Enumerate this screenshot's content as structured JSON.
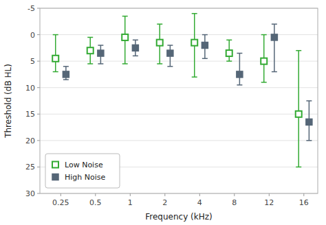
{
  "chart_data": {
    "type": "errorbar",
    "xlabel": "Frequency (kHz)",
    "ylabel": "Threshold (dB HL)",
    "categories": [
      "0.25",
      "0.5",
      "1",
      "2",
      "4",
      "8",
      "12",
      "16"
    ],
    "series": [
      {
        "name": "Low Noise",
        "color": "#33aa33",
        "marker": "open-square",
        "values": [
          4.5,
          3.0,
          0.5,
          1.5,
          1.5,
          3.5,
          5.0,
          15.0
        ],
        "err_lo": [
          4.5,
          2.5,
          4.0,
          3.5,
          5.5,
          2.5,
          5.0,
          12.0
        ],
        "err_hi": [
          2.5,
          2.5,
          5.0,
          4.0,
          6.5,
          1.5,
          4.0,
          10.0
        ]
      },
      {
        "name": "High Noise",
        "color": "#556677",
        "marker": "square",
        "values": [
          7.5,
          3.5,
          2.5,
          3.5,
          2.0,
          7.5,
          0.5,
          16.5
        ],
        "err_lo": [
          1.5,
          1.5,
          1.5,
          1.5,
          2.0,
          4.0,
          2.5,
          4.0
        ],
        "err_hi": [
          1.0,
          2.0,
          1.5,
          2.5,
          2.5,
          2.0,
          6.5,
          3.5
        ]
      }
    ],
    "ylim": [
      30,
      -5
    ],
    "yticks": [
      -5,
      0,
      5,
      10,
      15,
      20,
      25,
      30
    ],
    "grid": true,
    "legend": "lower left"
  }
}
